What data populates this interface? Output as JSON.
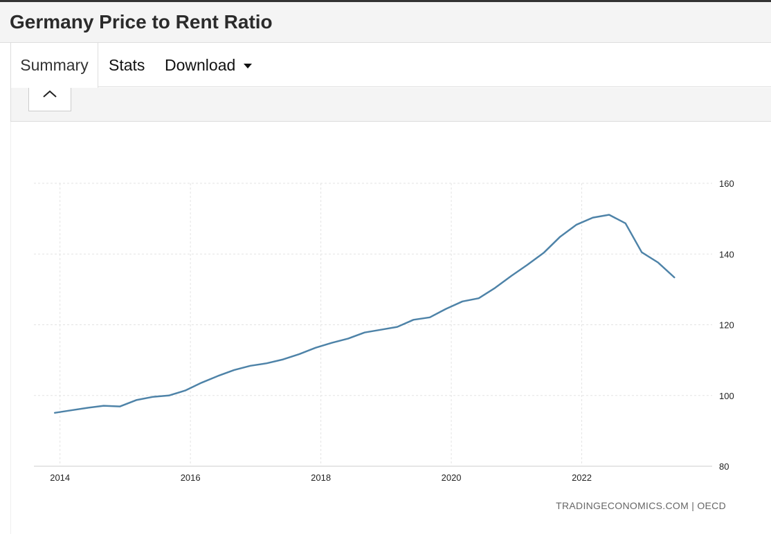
{
  "header": {
    "title": "Germany Price to Rent Ratio"
  },
  "tabs": {
    "summary": "Summary",
    "stats": "Stats",
    "download": "Download"
  },
  "panel": {
    "collapse_icon": "chevron-up-icon"
  },
  "chart_data": {
    "type": "line",
    "title": "",
    "xlabel": "",
    "ylabel": "",
    "x_unit": "year (decimal)",
    "xlim": [
      2013.6,
      2024.0
    ],
    "ylim": [
      80,
      160
    ],
    "x_ticks": [
      2014,
      2016,
      2018,
      2020,
      2022
    ],
    "y_ticks": [
      80,
      100,
      120,
      140,
      160
    ],
    "grid": true,
    "y_axis_position": "right",
    "line_color": "#4e83a8",
    "source": "TRADINGECONOMICS.COM | OECD",
    "series": [
      {
        "name": "",
        "x": [
          2013.92,
          2014.17,
          2014.42,
          2014.67,
          2014.92,
          2015.17,
          2015.42,
          2015.67,
          2015.92,
          2016.17,
          2016.42,
          2016.67,
          2016.92,
          2017.17,
          2017.42,
          2017.67,
          2017.92,
          2018.17,
          2018.42,
          2018.67,
          2018.92,
          2019.17,
          2019.42,
          2019.67,
          2019.92,
          2020.17,
          2020.42,
          2020.67,
          2020.92,
          2021.17,
          2021.42,
          2021.67,
          2021.92,
          2022.17,
          2022.42,
          2022.67,
          2022.92,
          2023.17,
          2023.42
        ],
        "values": [
          95.1,
          95.8,
          96.5,
          97.1,
          96.9,
          98.7,
          99.6,
          100.0,
          101.4,
          103.6,
          105.5,
          107.2,
          108.4,
          109.1,
          110.2,
          111.7,
          113.5,
          114.9,
          116.1,
          117.8,
          118.6,
          119.4,
          121.4,
          122.1,
          124.5,
          126.6,
          127.5,
          130.4,
          133.8,
          137.0,
          140.4,
          144.9,
          148.3,
          150.3,
          151.1,
          148.7,
          140.5,
          137.6,
          133.4
        ]
      }
    ]
  }
}
